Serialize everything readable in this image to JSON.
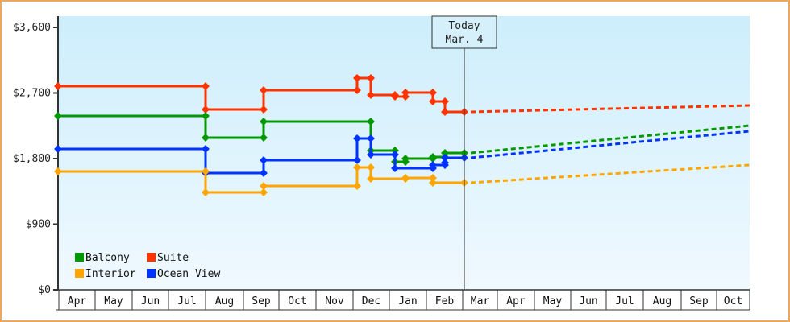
{
  "chart_data": {
    "type": "line",
    "title": "",
    "xlabel": "",
    "ylabel": "",
    "y_ticks": [
      "$0",
      "$900",
      "$1,800",
      "$2,700",
      "$3,600"
    ],
    "y_tick_values": [
      0,
      900,
      1800,
      2700,
      3600
    ],
    "ylim": [
      0,
      4200
    ],
    "x_categories": [
      "Apr",
      "May",
      "Jun",
      "Jul",
      "Aug",
      "Sep",
      "Oct",
      "Nov",
      "Dec",
      "Jan",
      "Feb",
      "Mar",
      "Apr",
      "May",
      "Jun",
      "Jul",
      "Aug",
      "Sep",
      "Oct"
    ],
    "today_marker": {
      "line1": "Today",
      "line2": "Mar. 4"
    },
    "legend": [
      {
        "name": "Balcony",
        "color": "#009900"
      },
      {
        "name": "Suite",
        "color": "#ff3300"
      },
      {
        "name": "Interior",
        "color": "#ffa500"
      },
      {
        "name": "Ocean View",
        "color": "#0033ff"
      }
    ],
    "series": [
      {
        "name": "Suite",
        "color": "#ff3300",
        "history_steps": [
          {
            "date": "Apr",
            "value": 3100
          },
          {
            "date": "Aug",
            "value": 2770
          },
          {
            "date": "Sep",
            "value": 3050
          },
          {
            "date": "Dec",
            "value": 3230
          },
          {
            "date": "Dec",
            "value": 3000
          },
          {
            "date": "Jan",
            "value": 2980
          },
          {
            "date": "Jan",
            "value": 3040
          },
          {
            "date": "Feb",
            "value": 2900
          },
          {
            "date": "Feb",
            "value": 2750
          }
        ],
        "forecast": {
          "start": 2750,
          "end_oct": 2830
        }
      },
      {
        "name": "Balcony",
        "color": "#009900",
        "history_steps": [
          {
            "date": "Apr",
            "value": 2700
          },
          {
            "date": "Aug",
            "value": 2330
          },
          {
            "date": "Sep",
            "value": 2610
          },
          {
            "date": "Dec",
            "value": 2130
          },
          {
            "date": "Jan",
            "value": 1960
          },
          {
            "date": "Jan",
            "value": 2010
          },
          {
            "date": "Feb",
            "value": 2040
          },
          {
            "date": "Feb",
            "value": 2090
          }
        ],
        "forecast": {
          "start": 2090,
          "end_oct": 2520
        }
      },
      {
        "name": "Ocean View",
        "color": "#0033ff",
        "history_steps": [
          {
            "date": "Apr",
            "value": 2180
          },
          {
            "date": "Aug",
            "value": 1780
          },
          {
            "date": "Sep",
            "value": 1980
          },
          {
            "date": "Dec",
            "value": 2320
          },
          {
            "date": "Dec",
            "value": 2100
          },
          {
            "date": "Jan",
            "value": 1880
          },
          {
            "date": "Feb",
            "value": 1920
          },
          {
            "date": "Feb",
            "value": 1950
          },
          {
            "date": "Feb",
            "value": 2010
          }
        ],
        "forecast": {
          "start": 2010,
          "end_oct": 2440
        }
      },
      {
        "name": "Interior",
        "color": "#ffa500",
        "history_steps": [
          {
            "date": "Apr",
            "value": 1810
          },
          {
            "date": "Aug",
            "value": 1490
          },
          {
            "date": "Sep",
            "value": 1580
          },
          {
            "date": "Dec",
            "value": 1870
          },
          {
            "date": "Dec",
            "value": 1700
          },
          {
            "date": "Feb",
            "value": 1640
          }
        ],
        "forecast": {
          "start": 1640,
          "end_oct": 1910
        }
      }
    ]
  }
}
